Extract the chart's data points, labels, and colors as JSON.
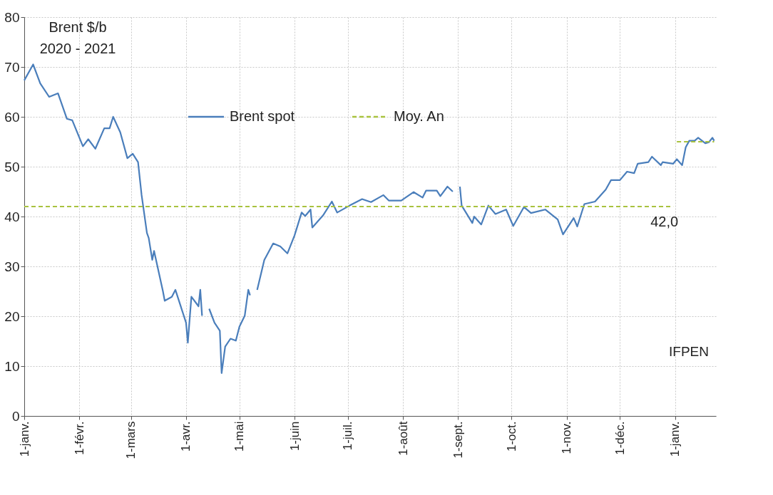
{
  "chart_data": {
    "type": "line",
    "title": "Brent $/b",
    "subtitle": "2020 - 2021",
    "xlim": [
      "2020-01-01",
      "2021-01-24"
    ],
    "ylim": [
      0,
      80
    ],
    "yticks": [
      0,
      10,
      20,
      30,
      40,
      50,
      60,
      70,
      80
    ],
    "xticks": [
      {
        "value": "2020-01-01",
        "label": "1-janv."
      },
      {
        "value": "2020-02-01",
        "label": "1-févr."
      },
      {
        "value": "2020-03-01",
        "label": "1-mars"
      },
      {
        "value": "2020-04-01",
        "label": "1-avr."
      },
      {
        "value": "2020-05-01",
        "label": "1-mai"
      },
      {
        "value": "2020-06-01",
        "label": "1-juin"
      },
      {
        "value": "2020-07-01",
        "label": "1-juil."
      },
      {
        "value": "2020-08-01",
        "label": "1-août"
      },
      {
        "value": "2020-09-01",
        "label": "1-sept."
      },
      {
        "value": "2020-10-01",
        "label": "1-oct."
      },
      {
        "value": "2020-11-01",
        "label": "1-nov."
      },
      {
        "value": "2020-12-01",
        "label": "1-déc."
      },
      {
        "value": "2021-01-01",
        "label": "1-janv."
      }
    ],
    "grid": true,
    "legend": "top",
    "marker": "none",
    "series": [
      {
        "name": "Brent spot",
        "color": "#4a7ebb",
        "line_style": "solid",
        "x": [
          "2020-01-01",
          "2020-01-06",
          "2020-01-10",
          "2020-01-15",
          "2020-01-20",
          "2020-01-25",
          "2020-01-28",
          "2020-02-03",
          "2020-02-06",
          "2020-02-10",
          "2020-02-15",
          "2020-02-18",
          "2020-02-20",
          "2020-02-24",
          "2020-02-28",
          "2020-03-02",
          "2020-03-05",
          "2020-03-07",
          "2020-03-10",
          "2020-03-11",
          "2020-03-13",
          "2020-03-14",
          "2020-03-19",
          "2020-03-20",
          "2020-03-24",
          "2020-03-26",
          "2020-04-01",
          "2020-04-02",
          "2020-04-04",
          "2020-04-08",
          "2020-04-09",
          "2020-04-10",
          "2020-04-12",
          "2020-04-14",
          "2020-04-17",
          "2020-04-20",
          "2020-04-21",
          "2020-04-23",
          "2020-04-26",
          "2020-04-29",
          "2020-05-01",
          "2020-05-04",
          "2020-05-06",
          "2020-05-07",
          "2020-05-09",
          "2020-05-11",
          "2020-05-15",
          "2020-05-20",
          "2020-05-24",
          "2020-05-28",
          "2020-06-01",
          "2020-06-05",
          "2020-06-07",
          "2020-06-10",
          "2020-06-11",
          "2020-06-17",
          "2020-06-22",
          "2020-06-25",
          "2020-07-02",
          "2020-07-09",
          "2020-07-14",
          "2020-07-21",
          "2020-07-24",
          "2020-07-31",
          "2020-08-07",
          "2020-08-12",
          "2020-08-14",
          "2020-08-20",
          "2020-08-22",
          "2020-08-26",
          "2020-08-29",
          "2020-08-31",
          "2020-09-02",
          "2020-09-03",
          "2020-09-09",
          "2020-09-10",
          "2020-09-14",
          "2020-09-18",
          "2020-09-22",
          "2020-09-28",
          "2020-10-02",
          "2020-10-08",
          "2020-10-12",
          "2020-10-20",
          "2020-10-27",
          "2020-10-30",
          "2020-11-05",
          "2020-11-07",
          "2020-11-11",
          "2020-11-17",
          "2020-11-23",
          "2020-11-26",
          "2020-12-01",
          "2020-12-05",
          "2020-12-09",
          "2020-12-11",
          "2020-12-17",
          "2020-12-19",
          "2020-12-24",
          "2020-12-25",
          "2020-12-31",
          "2021-01-02",
          "2021-01-05",
          "2021-01-07",
          "2021-01-09",
          "2021-01-12",
          "2021-01-14",
          "2021-01-18",
          "2021-01-20",
          "2021-01-22",
          "2021-01-23"
        ],
        "values": [
          67.3,
          70.5,
          66.7,
          64,
          64.7,
          59.6,
          59.3,
          54.1,
          55.5,
          53.6,
          57.7,
          57.7,
          60,
          56.9,
          51.7,
          52.6,
          50.9,
          44.3,
          36.7,
          35.7,
          31.3,
          33.1,
          25,
          23.1,
          23.9,
          25.3,
          18.7,
          14.7,
          23.9,
          22,
          25.3,
          20.1,
          null,
          21.5,
          18.7,
          17.1,
          8.6,
          13.9,
          15.5,
          15.1,
          17.9,
          20.1,
          25.3,
          24.2,
          null,
          25.3,
          31.3,
          34.6,
          34,
          32.6,
          36.2,
          40.8,
          40.1,
          41.4,
          37.8,
          40.2,
          43,
          40.8,
          42.2,
          43.5,
          42.9,
          44.3,
          43.2,
          43.2,
          44.9,
          43.8,
          45.2,
          45.2,
          44.1,
          46,
          45,
          null,
          46,
          42.2,
          38.7,
          40,
          38.4,
          42.2,
          40.5,
          41.4,
          38.1,
          41.9,
          40.7,
          41.4,
          39.4,
          36.4,
          39.7,
          38,
          42.5,
          43,
          45.4,
          47.3,
          47.3,
          49,
          48.7,
          50.6,
          50.9,
          52,
          50.3,
          50.9,
          50.6,
          51.5,
          50.3,
          53.9,
          55.2,
          55.2,
          55.8,
          54.7,
          54.9,
          55.8,
          55.2
        ]
      },
      {
        "name": "Moy. An",
        "color": "#a9c23f",
        "line_style": "dashed",
        "x": [
          "2020-01-01",
          "2020-12-31",
          "2021-01-01",
          "2021-01-02",
          "2021-01-23"
        ],
        "values": [
          42,
          42,
          null,
          55,
          55
        ]
      }
    ],
    "annotations": [
      {
        "text": "42,0",
        "x": "2020-12-26",
        "y": 42
      },
      "IFPEN"
    ]
  }
}
